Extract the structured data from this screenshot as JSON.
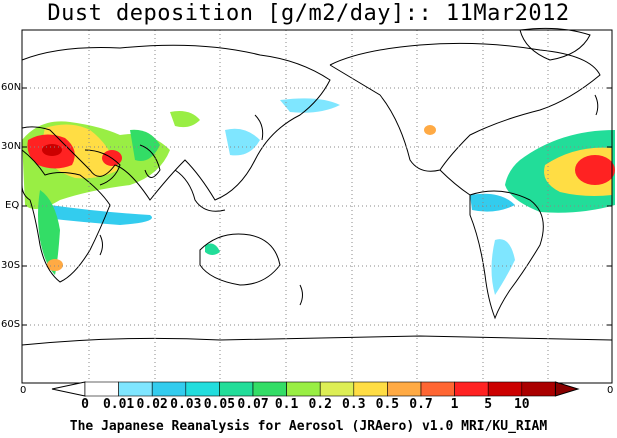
{
  "title": "Dust deposition [g/m2/day]:: 11Mar2012",
  "lat_labels": [
    "60N",
    "30N",
    "EQ",
    "30S",
    "60S"
  ],
  "colorbar": {
    "edge_left": "0",
    "edge_right": "0",
    "labels": [
      "0",
      "0.01",
      "0.02",
      "0.03",
      "0.05",
      "0.07",
      "0.1",
      "0.2",
      "0.3",
      "0.5",
      "0.7",
      "1",
      "5",
      "10"
    ],
    "colors": [
      "#ffffff",
      "#ffffff",
      "#7fe6ff",
      "#33ccee",
      "#22dddd",
      "#22dd99",
      "#33dd66",
      "#99ee44",
      "#ddee55",
      "#ffdd44",
      "#ffaa44",
      "#ff6633",
      "#ff2222",
      "#cc0000",
      "#aa0000",
      "#880000"
    ]
  },
  "footer": "The Japanese Reanalysis for Aerosol (JRAero) v1.0 MRI/KU_RIAM"
}
